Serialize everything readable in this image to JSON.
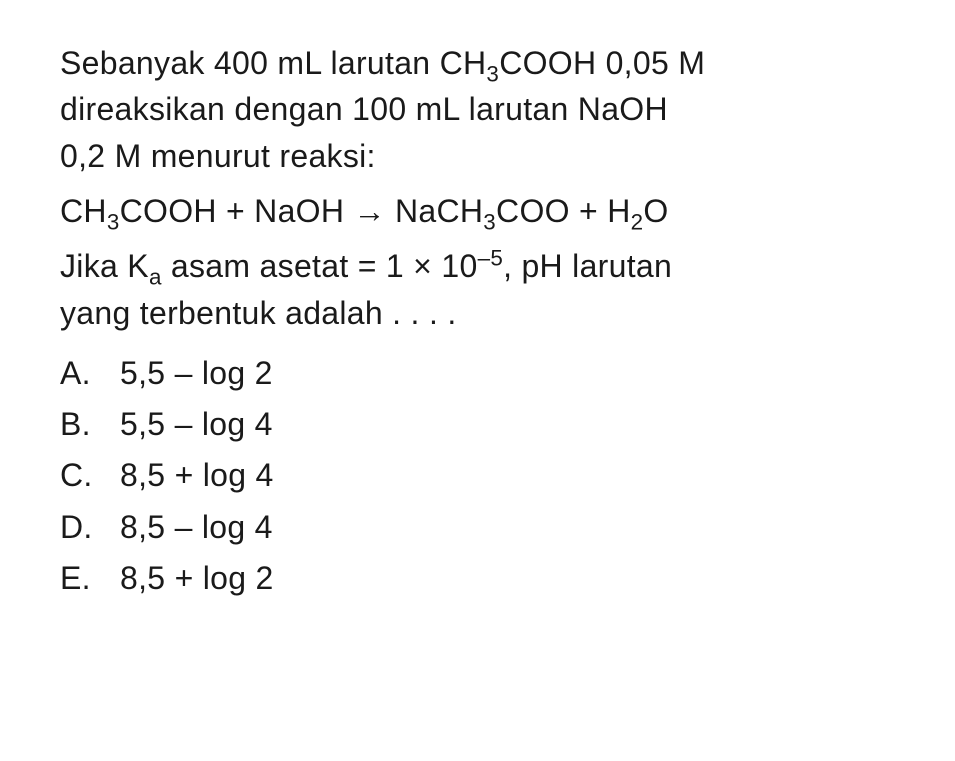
{
  "question": {
    "line1": "Sebanyak 400 mL larutan CH₃COOH 0,05 M",
    "line2": "direaksikan dengan 100 mL larutan NaOH",
    "line3": "0,2 M menurut reaksi:",
    "equation": "CH₃COOH + NaOH → NaCH₃COO + H₂O",
    "followup1": "Jika Kₐ asam asetat = 1 × 10⁻⁵, pH larutan",
    "followup2": "yang terbentuk adalah . . . ."
  },
  "options": [
    {
      "label": "A.",
      "value": "5,5 – log 2"
    },
    {
      "label": "B.",
      "value": "5,5 – log 4"
    },
    {
      "label": "C.",
      "value": "8,5 + log 4"
    },
    {
      "label": "D.",
      "value": "8,5 – log 4"
    },
    {
      "label": "E.",
      "value": "8,5 + log 2"
    }
  ],
  "styling": {
    "background_color": "#ffffff",
    "text_color": "#1a1a1a",
    "font_family": "Arial, Helvetica, sans-serif",
    "question_fontsize": 32,
    "option_fontsize": 32,
    "line_height": 1.45,
    "option_line_height": 1.6
  }
}
